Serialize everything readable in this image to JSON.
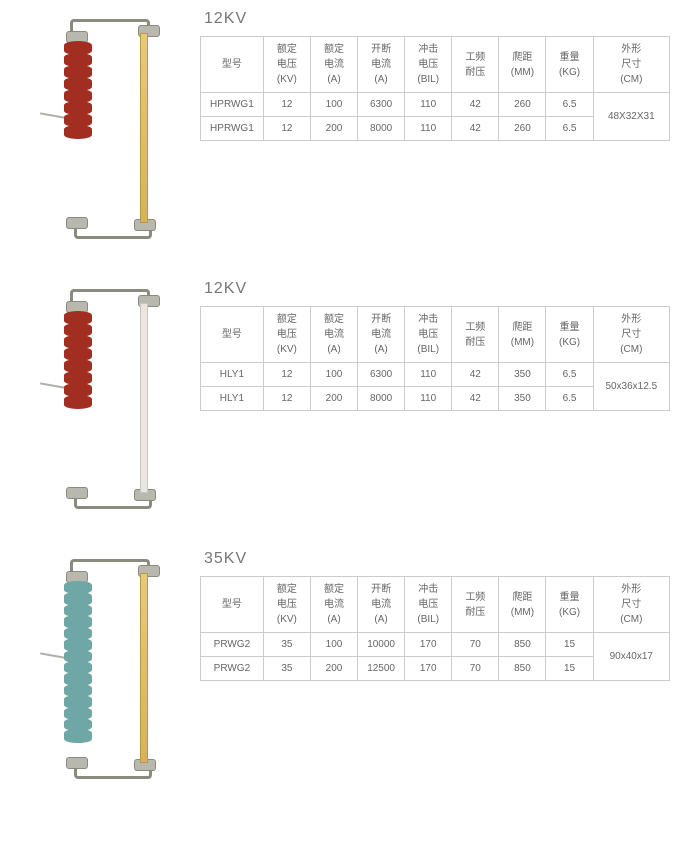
{
  "headers": {
    "model": "型号",
    "voltage": "额定\n电压\n(KV)",
    "current": "额定\n电流\n(A)",
    "break": "开断\n电流\n(A)",
    "impulse": "冲击\n电压\n(BIL)",
    "pf": "工频\n耐压",
    "creep": "爬距\n(MM)",
    "weight": "重量\n(KG)",
    "dim": "外形\n尺寸\n(CM)"
  },
  "sections": [
    {
      "title": "12KV",
      "insulator_color": "red",
      "shed_count": 8,
      "tube_class": "",
      "rows": [
        {
          "model": "HPRWG1",
          "kv": "12",
          "a": "100",
          "ba": "6300",
          "bil": "110",
          "pf": "42",
          "creep": "260",
          "kg": "6.5"
        },
        {
          "model": "HPRWG1",
          "kv": "12",
          "a": "200",
          "ba": "8000",
          "bil": "110",
          "pf": "42",
          "creep": "260",
          "kg": "6.5"
        }
      ],
      "dim": "48X32X31"
    },
    {
      "title": "12KV",
      "insulator_color": "red",
      "shed_count": 8,
      "tube_class": "white",
      "rows": [
        {
          "model": "HLY1",
          "kv": "12",
          "a": "100",
          "ba": "6300",
          "bil": "110",
          "pf": "42",
          "creep": "350",
          "kg": "6.5"
        },
        {
          "model": "HLY1",
          "kv": "12",
          "a": "200",
          "ba": "8000",
          "bil": "110",
          "pf": "42",
          "creep": "350",
          "kg": "6.5"
        }
      ],
      "dim": "50x36x12.5"
    },
    {
      "title": "35KV",
      "insulator_color": "blue",
      "shed_count": 14,
      "tube_class": "",
      "rows": [
        {
          "model": "PRWG2",
          "kv": "35",
          "a": "100",
          "ba": "10000",
          "bil": "170",
          "pf": "70",
          "creep": "850",
          "kg": "15"
        },
        {
          "model": "PRWG2",
          "kv": "35",
          "a": "200",
          "ba": "12500",
          "bil": "170",
          "pf": "70",
          "creep": "850",
          "kg": "15"
        }
      ],
      "dim": "90x40x17"
    }
  ]
}
